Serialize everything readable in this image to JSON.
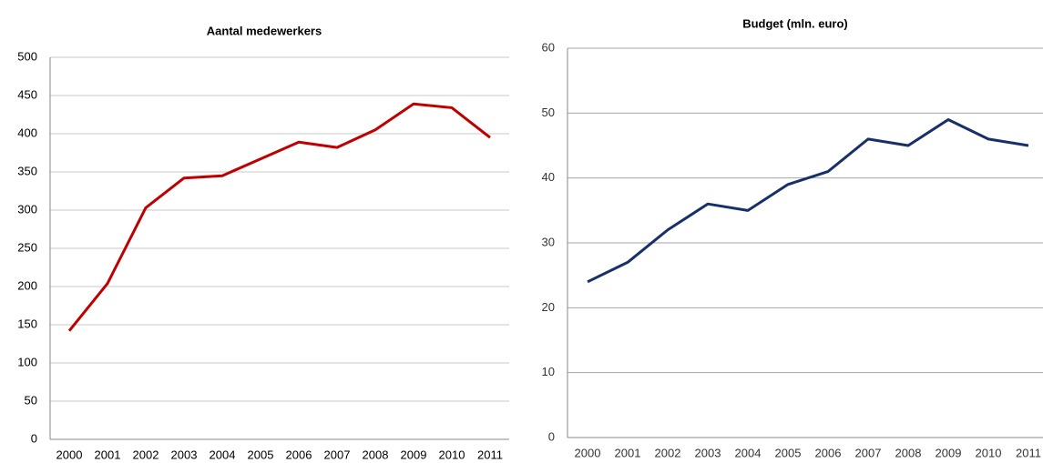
{
  "chart_data": [
    {
      "type": "line",
      "title": "Aantal medewerkers",
      "categories": [
        "2000",
        "2001",
        "2002",
        "2003",
        "2004",
        "2005",
        "2006",
        "2007",
        "2008",
        "2009",
        "2010",
        "2011"
      ],
      "series": [
        {
          "color": "#c00000",
          "values": [
            142,
            204,
            303,
            342,
            345,
            367,
            389,
            382,
            405,
            439,
            434,
            395
          ]
        }
      ],
      "ylim": [
        0,
        500
      ],
      "yticks": [
        0,
        50,
        100,
        150,
        200,
        250,
        300,
        350,
        400,
        450,
        500
      ],
      "grid": true
    },
    {
      "type": "line",
      "title": "Budget (mln. euro)",
      "categories": [
        "2000",
        "2001",
        "2002",
        "2003",
        "2004",
        "2005",
        "2006",
        "2007",
        "2008",
        "2009",
        "2010",
        "2011"
      ],
      "series": [
        {
          "color": "#17306b",
          "values": [
            24,
            27,
            32,
            36,
            35,
            39,
            41,
            46,
            45,
            49,
            46,
            45
          ]
        }
      ],
      "ylim": [
        0,
        60
      ],
      "yticks": [
        0,
        10,
        20,
        30,
        40,
        50,
        60
      ],
      "grid": true
    }
  ]
}
